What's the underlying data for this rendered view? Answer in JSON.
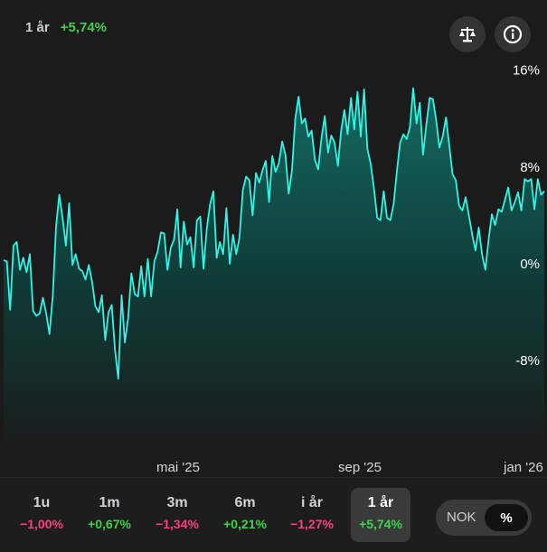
{
  "header": {
    "period": "1 år",
    "change": "+5,74%"
  },
  "icons": {
    "compare": "scale-icon",
    "info": "info-icon"
  },
  "colors": {
    "line": "#2ff5e6",
    "fill_top": "#137065",
    "positive": "#3fd14a",
    "negative": "#ff3f7f"
  },
  "chart_data": {
    "type": "area",
    "title": "",
    "y_ticks": [
      "16%",
      "8%",
      "0%",
      "-8%"
    ],
    "y_tick_values": [
      16,
      8,
      0,
      -8
    ],
    "x_ticks": [
      "mai '25",
      "sep '25",
      "jan '26"
    ],
    "ylim": [
      -16,
      18
    ],
    "grid": false,
    "series": [
      {
        "values": [
          0.3,
          0.2,
          -3.8,
          1.5,
          1.8,
          -0.5,
          0.5,
          -0.7,
          0.8,
          -3.9,
          -4.3,
          -4.1,
          -2.8,
          -4.1,
          -5.8,
          -2.6,
          3.1,
          5.7,
          3.8,
          1.5,
          5.0,
          -0.1,
          0.8,
          -0.4,
          -0.6,
          -1.3,
          -0.1,
          -1.5,
          -3.5,
          -4.0,
          -2.6,
          -6.3,
          -4.0,
          -3.4,
          -7.1,
          -9.5,
          -2.6,
          -6.5,
          -4.5,
          -0.8,
          -2.5,
          -2.7,
          -0.2,
          -2.7,
          0.4,
          -2.7,
          0.2,
          1.0,
          2.6,
          2.5,
          -0.5,
          1.3,
          2.0,
          4.5,
          -0.3,
          3.5,
          1.6,
          2.2,
          -0.3,
          3.6,
          3.9,
          -0.4,
          2.9,
          4.9,
          6.0,
          0.5,
          1.8,
          0.8,
          4.6,
          0.0,
          2.4,
          0.8,
          2.2,
          6.1,
          7.2,
          6.9,
          4.0,
          7.5,
          6.7,
          7.7,
          8.5,
          5.1,
          8.9,
          7.6,
          8.3,
          10.1,
          9.0,
          5.8,
          7.7,
          12.0,
          13.8,
          11.6,
          12.0,
          10.5,
          11.0,
          8.6,
          7.8,
          10.4,
          12.2,
          9.2,
          10.6,
          10.0,
          8.1,
          11.0,
          12.7,
          10.7,
          13.7,
          11.1,
          14.2,
          10.5,
          14.4,
          9.5,
          8.3,
          6.3,
          3.8,
          3.6,
          6.0,
          3.8,
          3.6,
          4.9,
          7.6,
          10.0,
          10.7,
          10.3,
          11.3,
          14.5,
          11.6,
          13.3,
          9.0,
          11.5,
          13.7,
          13.6,
          11.9,
          9.6,
          10.5,
          12.1,
          9.8,
          7.4,
          6.9,
          4.8,
          4.4,
          5.5,
          4.0,
          2.4,
          1.1,
          3.0,
          0.8,
          -0.5,
          2.0,
          4.1,
          3.2,
          4.5,
          4.3,
          5.3,
          6.3,
          4.4,
          5.1,
          5.9,
          4.4,
          7.0,
          6.8,
          7.0,
          4.5,
          7.0,
          5.7,
          6.0
        ],
        "line_color": "#2ff5e6"
      }
    ]
  },
  "tabs": [
    {
      "label": "1u",
      "change": "−1,00%",
      "sign": "neg"
    },
    {
      "label": "1m",
      "change": "+0,67%",
      "sign": "pos"
    },
    {
      "label": "3m",
      "change": "−1,34%",
      "sign": "neg"
    },
    {
      "label": "6m",
      "change": "+0,21%",
      "sign": "pos"
    },
    {
      "label": "i år",
      "change": "−1,27%",
      "sign": "neg"
    },
    {
      "label": "1 år",
      "change": "+5,74%",
      "sign": "pos",
      "active": true
    }
  ],
  "toggle": {
    "option_a": "NOK",
    "option_b": "%",
    "selected": "%"
  }
}
